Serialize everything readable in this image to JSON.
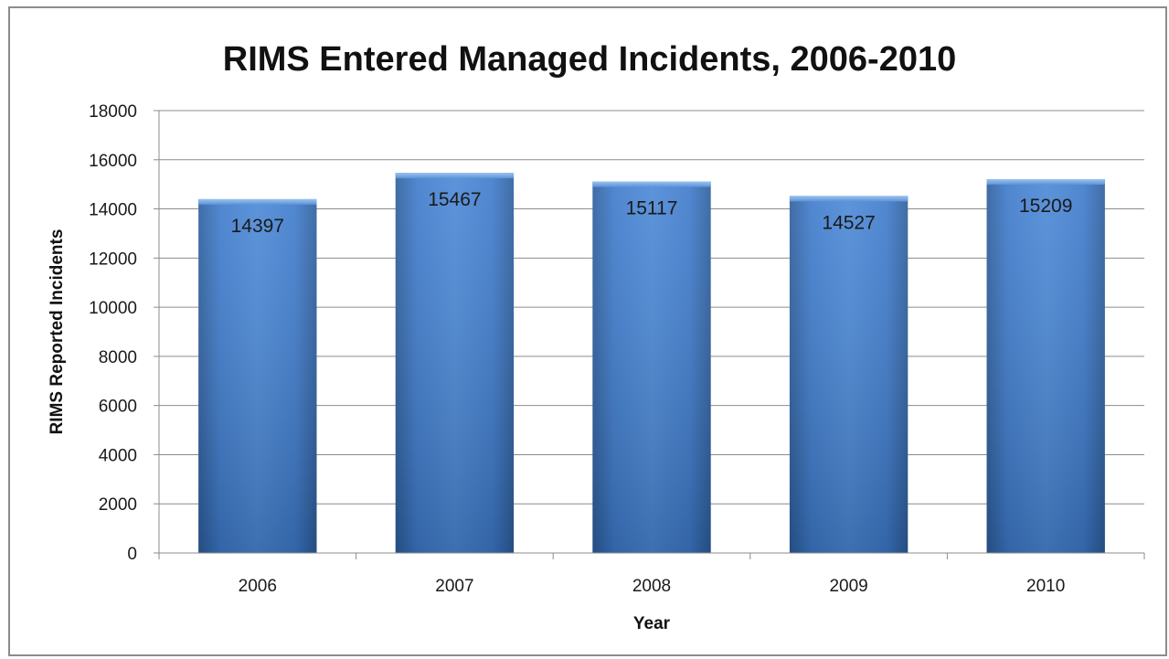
{
  "chart_data": {
    "type": "bar",
    "title": "RIMS Entered Managed Incidents, 2006-2010",
    "xlabel": "Year",
    "ylabel": "RIMS Reported Incidents",
    "categories": [
      "2006",
      "2007",
      "2008",
      "2009",
      "2010"
    ],
    "values": [
      14397,
      15467,
      15117,
      14527,
      15209
    ],
    "ylim": [
      0,
      18000
    ],
    "yticks": [
      0,
      2000,
      4000,
      6000,
      8000,
      10000,
      12000,
      14000,
      16000,
      18000
    ],
    "grid": true,
    "legend": "none",
    "data_labels": "inside-top",
    "bar_color": "#3a76c0"
  }
}
